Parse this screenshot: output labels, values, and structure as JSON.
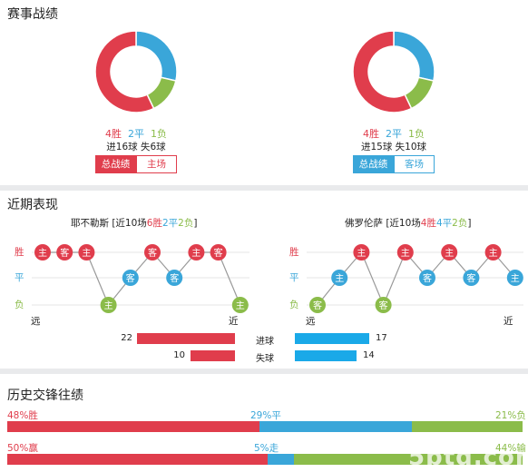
{
  "record": {
    "title": "赛事战绩",
    "left": {
      "wins": "4胜",
      "draws": "2平",
      "losses": "1负",
      "goals": "进16球 失6球",
      "tab_active": "总战绩",
      "tab_other": "主场",
      "chart": {
        "w": 4,
        "d": 2,
        "l": 1
      }
    },
    "right": {
      "wins": "4胜",
      "draws": "2平",
      "losses": "1负",
      "goals": "进15球 失10球",
      "tab_active": "总战绩",
      "tab_other": "客场",
      "chart": {
        "w": 4,
        "d": 2,
        "l": 1
      }
    }
  },
  "form": {
    "title": "近期表现",
    "row_win": "胜",
    "row_draw": "平",
    "row_loss": "负",
    "far": "远",
    "near": "近",
    "left_team": {
      "name": "耶不勒斯",
      "pre": " [近10场",
      "w": "6胜",
      "d": "2平",
      "l": "2负",
      "post": "]",
      "games": [
        [
          "w",
          "主"
        ],
        [
          "w",
          "客"
        ],
        [
          "w",
          "主"
        ],
        [
          "l",
          "主"
        ],
        [
          "d",
          "客"
        ],
        [
          "w",
          "客"
        ],
        [
          "d",
          "客"
        ],
        [
          "w",
          "主"
        ],
        [
          "w",
          "客"
        ],
        [
          "l",
          "主"
        ]
      ]
    },
    "right_team": {
      "name": "佛罗伦萨",
      "pre": " [近10场",
      "w": "4胜",
      "d": "4平",
      "l": "2负",
      "post": "]",
      "games": [
        [
          "l",
          "客"
        ],
        [
          "d",
          "主"
        ],
        [
          "w",
          "主"
        ],
        [
          "l",
          "客"
        ],
        [
          "w",
          "主"
        ],
        [
          "d",
          "客"
        ],
        [
          "w",
          "主"
        ],
        [
          "d",
          "客"
        ],
        [
          "w",
          "主"
        ],
        [
          "d",
          "主"
        ]
      ]
    },
    "goals_label": "进球",
    "conceded_label": "失球",
    "left_goals": 22,
    "left_conceded": 10,
    "right_goals": 17,
    "right_conceded": 14
  },
  "history": {
    "title": "历史交锋往绩",
    "row1": {
      "a": "48%胜",
      "b": "29%平",
      "c": "21%负",
      "va": 48,
      "vb": 29,
      "vc": 21
    },
    "row2": {
      "a": "50%赢",
      "b": "5%走",
      "c": "44%输",
      "va": 50,
      "vb": 5,
      "vc": 44
    }
  },
  "colors": {
    "red": "#e03d4c",
    "blue": "#3aa6d9",
    "green": "#8bbc4a",
    "barblue": "#1aa9e8"
  },
  "watermark": "5btq.com"
}
